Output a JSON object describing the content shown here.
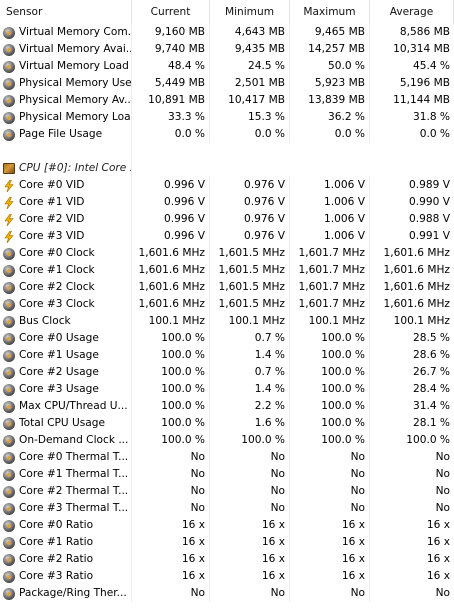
{
  "columns": {
    "sensor": "Sensor",
    "current": "Current",
    "minimum": "Minimum",
    "maximum": "Maximum",
    "average": "Average"
  },
  "rows": [
    {
      "type": "sensor",
      "icon": "sensor-circle-icon",
      "label": "Virtual Memory Com...",
      "current": "9,160 MB",
      "minimum": "4,643 MB",
      "maximum": "9,465 MB",
      "average": "8,586 MB"
    },
    {
      "type": "sensor",
      "icon": "sensor-circle-icon",
      "label": "Virtual Memory Avai...",
      "current": "9,740 MB",
      "minimum": "9,435 MB",
      "maximum": "14,257 MB",
      "average": "10,314 MB"
    },
    {
      "type": "sensor",
      "icon": "sensor-circle-icon",
      "label": "Virtual Memory Load",
      "current": "48.4 %",
      "minimum": "24.5 %",
      "maximum": "50.0 %",
      "average": "45.4 %"
    },
    {
      "type": "sensor",
      "icon": "sensor-circle-icon",
      "label": "Physical Memory Used",
      "current": "5,449 MB",
      "minimum": "2,501 MB",
      "maximum": "5,923 MB",
      "average": "5,196 MB"
    },
    {
      "type": "sensor",
      "icon": "sensor-circle-icon",
      "label": "Physical Memory Av...",
      "current": "10,891 MB",
      "minimum": "10,417 MB",
      "maximum": "13,839 MB",
      "average": "11,144 MB"
    },
    {
      "type": "sensor",
      "icon": "sensor-circle-icon",
      "label": "Physical Memory Load",
      "current": "33.3 %",
      "minimum": "15.3 %",
      "maximum": "36.2 %",
      "average": "31.8 %"
    },
    {
      "type": "sensor",
      "icon": "sensor-circle-icon",
      "label": "Page File Usage",
      "current": "0.0 %",
      "minimum": "0.0 %",
      "maximum": "0.0 %",
      "average": "0.0 %"
    },
    {
      "type": "blank"
    },
    {
      "type": "group",
      "icon": "cpu-chip-icon",
      "label": "CPU [#0]: Intel Core ..."
    },
    {
      "type": "sensor",
      "icon": "voltage-bolt-icon",
      "label": "Core #0 VID",
      "current": "0.996 V",
      "minimum": "0.976 V",
      "maximum": "1.006 V",
      "average": "0.989 V"
    },
    {
      "type": "sensor",
      "icon": "voltage-bolt-icon",
      "label": "Core #1 VID",
      "current": "0.996 V",
      "minimum": "0.976 V",
      "maximum": "1.006 V",
      "average": "0.990 V"
    },
    {
      "type": "sensor",
      "icon": "voltage-bolt-icon",
      "label": "Core #2 VID",
      "current": "0.996 V",
      "minimum": "0.976 V",
      "maximum": "1.006 V",
      "average": "0.988 V"
    },
    {
      "type": "sensor",
      "icon": "voltage-bolt-icon",
      "label": "Core #3 VID",
      "current": "0.996 V",
      "minimum": "0.976 V",
      "maximum": "1.006 V",
      "average": "0.991 V"
    },
    {
      "type": "sensor",
      "icon": "sensor-circle-icon",
      "label": "Core #0 Clock",
      "current": "1,601.6 MHz",
      "minimum": "1,601.5 MHz",
      "maximum": "1,601.7 MHz",
      "average": "1,601.6 MHz"
    },
    {
      "type": "sensor",
      "icon": "sensor-circle-icon",
      "label": "Core #1 Clock",
      "current": "1,601.6 MHz",
      "minimum": "1,601.5 MHz",
      "maximum": "1,601.7 MHz",
      "average": "1,601.6 MHz"
    },
    {
      "type": "sensor",
      "icon": "sensor-circle-icon",
      "label": "Core #2 Clock",
      "current": "1,601.6 MHz",
      "minimum": "1,601.5 MHz",
      "maximum": "1,601.7 MHz",
      "average": "1,601.6 MHz"
    },
    {
      "type": "sensor",
      "icon": "sensor-circle-icon",
      "label": "Core #3 Clock",
      "current": "1,601.6 MHz",
      "minimum": "1,601.5 MHz",
      "maximum": "1,601.7 MHz",
      "average": "1,601.6 MHz"
    },
    {
      "type": "sensor",
      "icon": "sensor-circle-icon",
      "label": "Bus Clock",
      "current": "100.1 MHz",
      "minimum": "100.1 MHz",
      "maximum": "100.1 MHz",
      "average": "100.1 MHz"
    },
    {
      "type": "sensor",
      "icon": "sensor-circle-icon",
      "label": "Core #0 Usage",
      "current": "100.0 %",
      "minimum": "0.7 %",
      "maximum": "100.0 %",
      "average": "28.5 %"
    },
    {
      "type": "sensor",
      "icon": "sensor-circle-icon",
      "label": "Core #1 Usage",
      "current": "100.0 %",
      "minimum": "1.4 %",
      "maximum": "100.0 %",
      "average": "28.6 %"
    },
    {
      "type": "sensor",
      "icon": "sensor-circle-icon",
      "label": "Core #2 Usage",
      "current": "100.0 %",
      "minimum": "0.7 %",
      "maximum": "100.0 %",
      "average": "26.7 %"
    },
    {
      "type": "sensor",
      "icon": "sensor-circle-icon",
      "label": "Core #3 Usage",
      "current": "100.0 %",
      "minimum": "1.4 %",
      "maximum": "100.0 %",
      "average": "28.4 %"
    },
    {
      "type": "sensor",
      "icon": "sensor-circle-icon",
      "label": "Max CPU/Thread U...",
      "current": "100.0 %",
      "minimum": "2.2 %",
      "maximum": "100.0 %",
      "average": "31.4 %"
    },
    {
      "type": "sensor",
      "icon": "sensor-circle-icon",
      "label": "Total CPU Usage",
      "current": "100.0 %",
      "minimum": "1.6 %",
      "maximum": "100.0 %",
      "average": "28.1 %"
    },
    {
      "type": "sensor",
      "icon": "sensor-circle-icon",
      "label": "On-Demand Clock ...",
      "current": "100.0 %",
      "minimum": "100.0 %",
      "maximum": "100.0 %",
      "average": "100.0 %"
    },
    {
      "type": "sensor",
      "icon": "sensor-circle-icon",
      "label": "Core #0 Thermal T...",
      "current": "No",
      "minimum": "No",
      "maximum": "No",
      "average": "No"
    },
    {
      "type": "sensor",
      "icon": "sensor-circle-icon",
      "label": "Core #1 Thermal T...",
      "current": "No",
      "minimum": "No",
      "maximum": "No",
      "average": "No"
    },
    {
      "type": "sensor",
      "icon": "sensor-circle-icon",
      "label": "Core #2 Thermal T...",
      "current": "No",
      "minimum": "No",
      "maximum": "No",
      "average": "No"
    },
    {
      "type": "sensor",
      "icon": "sensor-circle-icon",
      "label": "Core #3 Thermal T...",
      "current": "No",
      "minimum": "No",
      "maximum": "No",
      "average": "No"
    },
    {
      "type": "sensor",
      "icon": "sensor-circle-icon",
      "label": "Core #0 Ratio",
      "current": "16 x",
      "minimum": "16 x",
      "maximum": "16 x",
      "average": "16 x"
    },
    {
      "type": "sensor",
      "icon": "sensor-circle-icon",
      "label": "Core #1 Ratio",
      "current": "16 x",
      "minimum": "16 x",
      "maximum": "16 x",
      "average": "16 x"
    },
    {
      "type": "sensor",
      "icon": "sensor-circle-icon",
      "label": "Core #2 Ratio",
      "current": "16 x",
      "minimum": "16 x",
      "maximum": "16 x",
      "average": "16 x"
    },
    {
      "type": "sensor",
      "icon": "sensor-circle-icon",
      "label": "Core #3 Ratio",
      "current": "16 x",
      "minimum": "16 x",
      "maximum": "16 x",
      "average": "16 x"
    },
    {
      "type": "sensor",
      "icon": "sensor-circle-icon",
      "label": "Package/Ring Ther...",
      "current": "No",
      "minimum": "No",
      "maximum": "No",
      "average": "No"
    }
  ]
}
